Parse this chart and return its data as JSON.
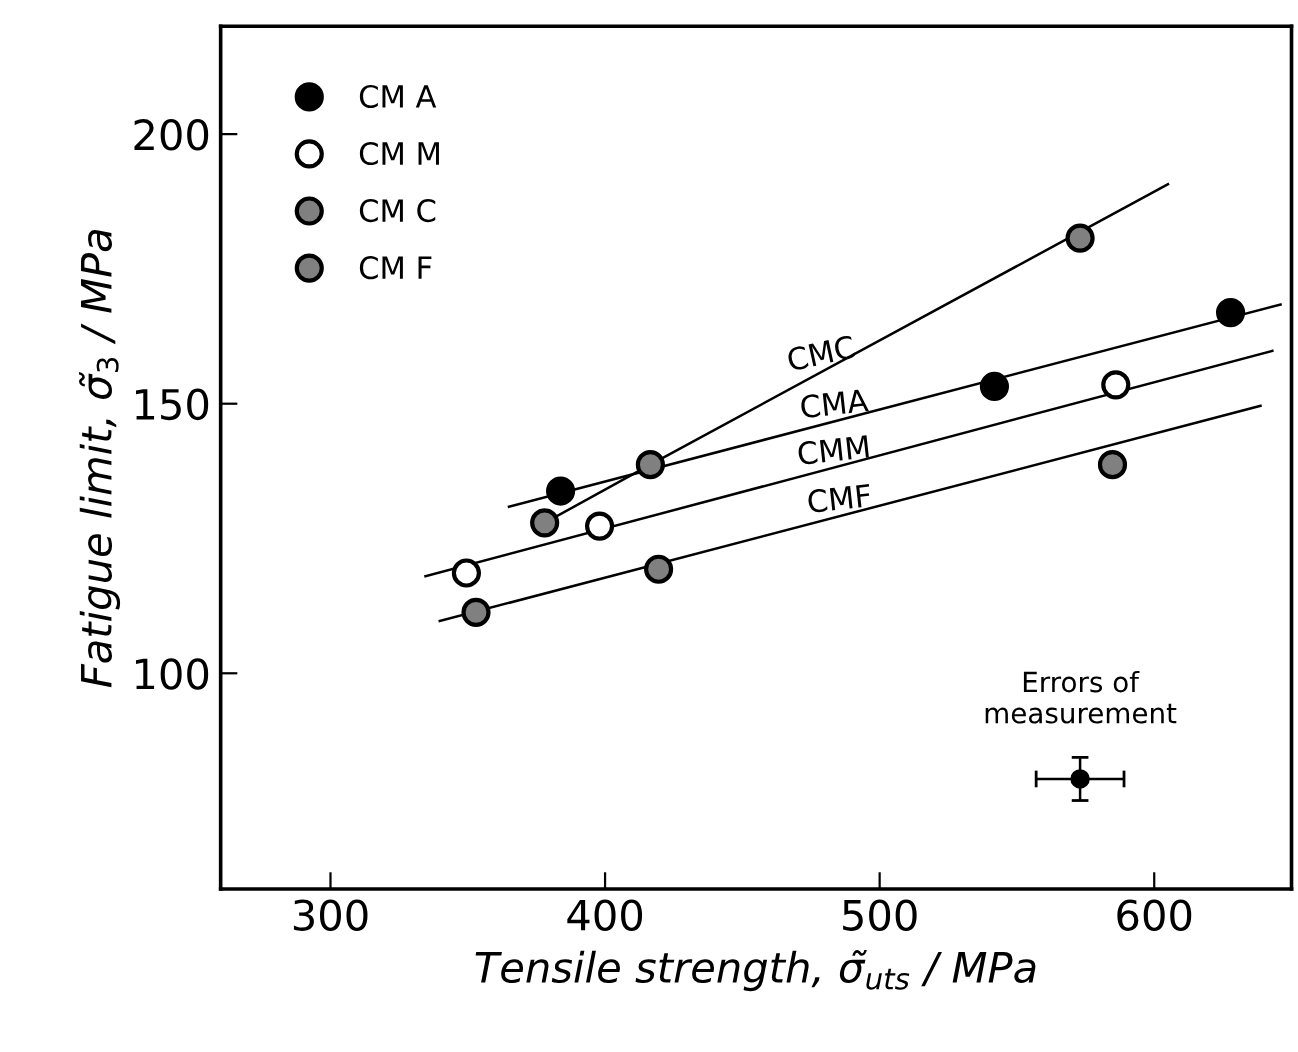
{
  "chart_data": {
    "type": "scatter",
    "xlabel": "Tensile strength, σ̃$_{uts}$ / MPa",
    "ylabel": "Fatigue limit, σ̃$_{3}$ / MPa",
    "xlim": [
      260,
      650
    ],
    "xticks": [
      300,
      400,
      500,
      600
    ],
    "ylim": [
      60,
      220
    ],
    "yticks": [
      100,
      150,
      200
    ],
    "grid": false,
    "legend": "top left",
    "marker": "circle",
    "series": [
      {
        "name": "CM A",
        "color": "#000000",
        "x": [
          383.8,
          541.8,
          627.8
        ],
        "values": [
          133.8,
          153.2,
          166.9
        ]
      },
      {
        "name": "CM M",
        "color": "#ffffff",
        "x": [
          349.5,
          398,
          586
        ],
        "values": [
          118.6,
          127.3,
          153.5
        ]
      },
      {
        "name": "CM C",
        "color": "#808080",
        "x": [
          378,
          416.5,
          573
        ],
        "values": [
          127.9,
          138.7,
          180.7
        ]
      },
      {
        "name": "CM F",
        "color": "#808080",
        "x": [
          353,
          419.5,
          584.8
        ],
        "values": [
          111.3,
          119.3,
          138.7
        ]
      },
      {
        "type": "line",
        "color": "#000000",
        "marker": "none",
        "x": [
          365,
          646
        ],
        "values": [
          130.9,
          168.4
        ]
      },
      {
        "type": "line",
        "color": "#000000",
        "marker": "none",
        "x": [
          378,
          416.5,
          605
        ],
        "values": [
          127.9,
          138.7,
          190.7
        ]
      },
      {
        "type": "line",
        "color": "#000000",
        "marker": "none",
        "x": [
          334.6,
          643
        ],
        "values": [
          118,
          159.8
        ]
      },
      {
        "type": "line",
        "color": "#000000",
        "marker": "none",
        "x": [
          339.8,
          638.7
        ],
        "values": [
          109.7,
          149.6
        ]
      },
      {
        "type": "scatter",
        "color": "#000000",
        "x": [
          573
        ],
        "values": [
          80.4
        ],
        "errors": [
          4
        ],
        "xerrors": [
          16
        ]
      }
    ],
    "annotations": [
      {
        "text": "CMC",
        "x": 480,
        "y": 156.2
      },
      {
        "text": "CMA",
        "x": 484,
        "y": 146.8
      },
      {
        "text": "CMM",
        "x": 484,
        "y": 138.2
      },
      {
        "text": "CMF",
        "x": 486,
        "y": 129.2
      },
      "Errors of\nmeasurement"
    ]
  }
}
